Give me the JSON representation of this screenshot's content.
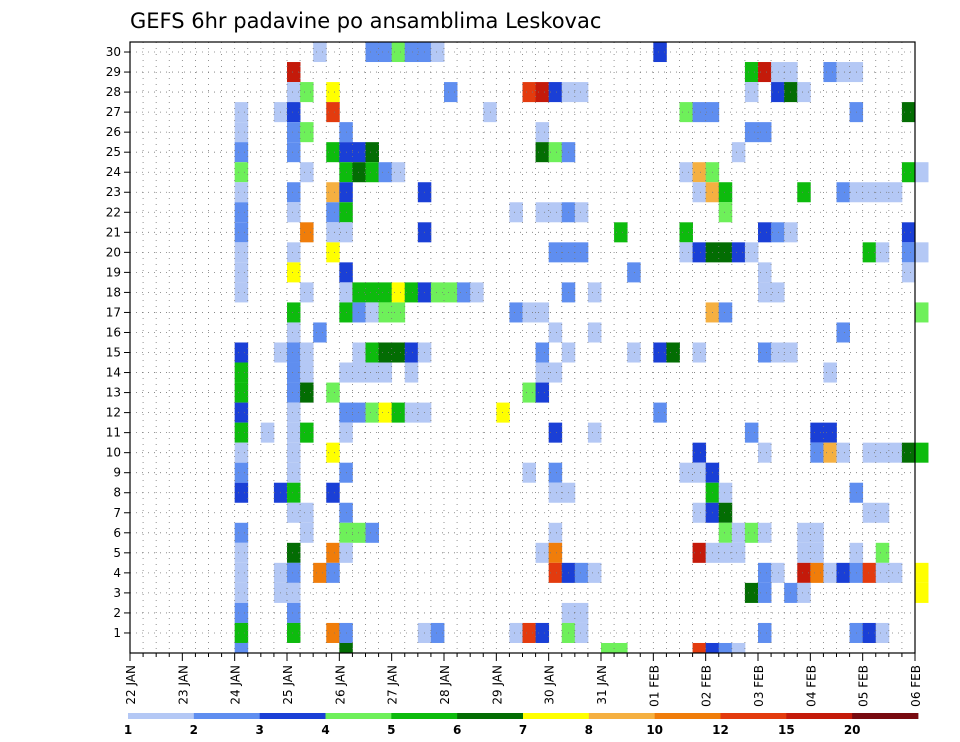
{
  "chart_data": {
    "type": "heatmap",
    "title": "GEFS 6hr padavine po ansamblima Leskovac",
    "xlabel": "",
    "ylabel": "",
    "x_tick_labels": [
      "22 JAN",
      "23 JAN",
      "24 JAN",
      "25 JAN",
      "26 JAN",
      "27 JAN",
      "28 JAN",
      "29 JAN",
      "30 JAN",
      "31 JAN",
      "01 FEB",
      "02 FEB",
      "03 FEB",
      "04 FEB",
      "05 FEB",
      "06 FEB"
    ],
    "y_tick_labels": [
      "1",
      "2",
      "3",
      "4",
      "5",
      "6",
      "7",
      "8",
      "9",
      "10",
      "11",
      "12",
      "13",
      "14",
      "15",
      "16",
      "17",
      "18",
      "19",
      "20",
      "21",
      "22",
      "23",
      "24",
      "25",
      "26",
      "27",
      "28",
      "29",
      "30"
    ],
    "time_steps_per_day": 4,
    "grid": true,
    "colorbar": {
      "labels": [
        "1",
        "2",
        "3",
        "4",
        "5",
        "6",
        "7",
        "8",
        "10",
        "12",
        "15",
        "20"
      ],
      "colors": [
        "#b4c8f5",
        "#5f8ef0",
        "#1a3fd6",
        "#6ef05a",
        "#0dbb0d",
        "#036d03",
        "#ffff00",
        "#f5b041",
        "#f07d0a",
        "#e33b0e",
        "#c41a0a",
        "#780a10"
      ]
    },
    "cells": [
      [
        30,
        3.5,
        1
      ],
      [
        30,
        4.5,
        2
      ],
      [
        30,
        4.75,
        2
      ],
      [
        30,
        5,
        4
      ],
      [
        30,
        5.25,
        2
      ],
      [
        30,
        5.5,
        2
      ],
      [
        30,
        5.75,
        1
      ],
      [
        30,
        10,
        3
      ],
      [
        29,
        3,
        11
      ],
      [
        29,
        11.75,
        5
      ],
      [
        29,
        12,
        11
      ],
      [
        29,
        12.25,
        1
      ],
      [
        29,
        12.5,
        1
      ],
      [
        29,
        13.25,
        2
      ],
      [
        29,
        13.5,
        1
      ],
      [
        29,
        13.75,
        1
      ],
      [
        28,
        3,
        1
      ],
      [
        28,
        3.25,
        4
      ],
      [
        28,
        3.75,
        7
      ],
      [
        28,
        6,
        2
      ],
      [
        28,
        7.5,
        10
      ],
      [
        28,
        7.75,
        11
      ],
      [
        28,
        8,
        3
      ],
      [
        28,
        8.25,
        1
      ],
      [
        28,
        8.5,
        1
      ],
      [
        28,
        11.75,
        1
      ],
      [
        28,
        12.25,
        3
      ],
      [
        28,
        12.5,
        6
      ],
      [
        28,
        12.75,
        1
      ],
      [
        27,
        2,
        1
      ],
      [
        27,
        2.75,
        1
      ],
      [
        27,
        3,
        3
      ],
      [
        27,
        3.75,
        10
      ],
      [
        27,
        6.75,
        1
      ],
      [
        27,
        10.5,
        4
      ],
      [
        27,
        10.75,
        2
      ],
      [
        27,
        11,
        2
      ],
      [
        27,
        13.75,
        2
      ],
      [
        27,
        14.75,
        6
      ],
      [
        26,
        2,
        1
      ],
      [
        26,
        3,
        2
      ],
      [
        26,
        3.25,
        4
      ],
      [
        26,
        4,
        2
      ],
      [
        26,
        7.75,
        1
      ],
      [
        26,
        11.75,
        2
      ],
      [
        26,
        12,
        2
      ],
      [
        25,
        2,
        2
      ],
      [
        25,
        3,
        2
      ],
      [
        25,
        3.75,
        5
      ],
      [
        25,
        4,
        3
      ],
      [
        25,
        4.25,
        3
      ],
      [
        25,
        4.5,
        6
      ],
      [
        25,
        7.75,
        6
      ],
      [
        25,
        8,
        4
      ],
      [
        25,
        8.25,
        2
      ],
      [
        25,
        11.5,
        1
      ],
      [
        24,
        2,
        4
      ],
      [
        24,
        3.25,
        1
      ],
      [
        24,
        4,
        5
      ],
      [
        24,
        4.25,
        6
      ],
      [
        24,
        4.5,
        5
      ],
      [
        24,
        4.75,
        2
      ],
      [
        24,
        5,
        1
      ],
      [
        24,
        10.5,
        1
      ],
      [
        24,
        10.75,
        8
      ],
      [
        24,
        11,
        4
      ],
      [
        24,
        14.75,
        5
      ],
      [
        24,
        15,
        1
      ],
      [
        23,
        2,
        1
      ],
      [
        23,
        3,
        2
      ],
      [
        23,
        3.75,
        8
      ],
      [
        23,
        4,
        3
      ],
      [
        23,
        5.5,
        3
      ],
      [
        23,
        10.75,
        1
      ],
      [
        23,
        11,
        8
      ],
      [
        23,
        11.25,
        5
      ],
      [
        23,
        12.75,
        5
      ],
      [
        23,
        13.5,
        2
      ],
      [
        23,
        13.75,
        1
      ],
      [
        23,
        14,
        1
      ],
      [
        23,
        14.25,
        1
      ],
      [
        23,
        14.5,
        1
      ],
      [
        22,
        2,
        2
      ],
      [
        22,
        3,
        1
      ],
      [
        22,
        3.75,
        2
      ],
      [
        22,
        4,
        5
      ],
      [
        22,
        7.25,
        1
      ],
      [
        22,
        7.75,
        1
      ],
      [
        22,
        8,
        1
      ],
      [
        22,
        8.25,
        2
      ],
      [
        22,
        8.5,
        1
      ],
      [
        22,
        11.25,
        4
      ],
      [
        21,
        2,
        2
      ],
      [
        21,
        3.25,
        9
      ],
      [
        21,
        3.75,
        1
      ],
      [
        21,
        4,
        1
      ],
      [
        21,
        5.5,
        3
      ],
      [
        21,
        9.25,
        5
      ],
      [
        21,
        10.5,
        5
      ],
      [
        21,
        12,
        3
      ],
      [
        21,
        12.25,
        2
      ],
      [
        21,
        12.5,
        1
      ],
      [
        21,
        14.75,
        3
      ],
      [
        20,
        2,
        1
      ],
      [
        20,
        3,
        1
      ],
      [
        20,
        3.75,
        7
      ],
      [
        20,
        8,
        2
      ],
      [
        20,
        8.25,
        2
      ],
      [
        20,
        8.5,
        2
      ],
      [
        20,
        10.5,
        1
      ],
      [
        20,
        10.75,
        3
      ],
      [
        20,
        11,
        6
      ],
      [
        20,
        11.25,
        6
      ],
      [
        20,
        11.5,
        3
      ],
      [
        20,
        11.75,
        1
      ],
      [
        20,
        14,
        5
      ],
      [
        20,
        14.25,
        1
      ],
      [
        20,
        14.75,
        2
      ],
      [
        20,
        15,
        1
      ],
      [
        19,
        2,
        1
      ],
      [
        19,
        3,
        7
      ],
      [
        19,
        4,
        3
      ],
      [
        19,
        9.5,
        2
      ],
      [
        19,
        12,
        1
      ],
      [
        19,
        14.75,
        1
      ],
      [
        18,
        2,
        1
      ],
      [
        18,
        3.25,
        1
      ],
      [
        18,
        4,
        1
      ],
      [
        18,
        4.25,
        5
      ],
      [
        18,
        4.5,
        5
      ],
      [
        18,
        4.75,
        5
      ],
      [
        18,
        5,
        7
      ],
      [
        18,
        5.25,
        5
      ],
      [
        18,
        5.5,
        3
      ],
      [
        18,
        5.75,
        4
      ],
      [
        18,
        6,
        4
      ],
      [
        18,
        6.25,
        2
      ],
      [
        18,
        6.5,
        1
      ],
      [
        18,
        8.25,
        2
      ],
      [
        18,
        8.75,
        1
      ],
      [
        18,
        12,
        1
      ],
      [
        18,
        12.25,
        1
      ],
      [
        17,
        3,
        5
      ],
      [
        17,
        4,
        5
      ],
      [
        17,
        4.25,
        2
      ],
      [
        17,
        4.5,
        1
      ],
      [
        17,
        4.75,
        4
      ],
      [
        17,
        5,
        4
      ],
      [
        17,
        7.25,
        2
      ],
      [
        17,
        7.5,
        1
      ],
      [
        17,
        7.75,
        1
      ],
      [
        17,
        11,
        8
      ],
      [
        17,
        11.25,
        2
      ],
      [
        17,
        15,
        4
      ],
      [
        16,
        3,
        1
      ],
      [
        16,
        3.5,
        2
      ],
      [
        16,
        8,
        1
      ],
      [
        16,
        8.75,
        1
      ],
      [
        16,
        13.5,
        2
      ],
      [
        15,
        2,
        3
      ],
      [
        15,
        2.75,
        1
      ],
      [
        15,
        3,
        2
      ],
      [
        15,
        3.25,
        1
      ],
      [
        15,
        4.25,
        1
      ],
      [
        15,
        4.5,
        5
      ],
      [
        15,
        4.75,
        6
      ],
      [
        15,
        5,
        6
      ],
      [
        15,
        5.25,
        3
      ],
      [
        15,
        5.5,
        1
      ],
      [
        15,
        7.75,
        2
      ],
      [
        15,
        8.25,
        1
      ],
      [
        15,
        9.5,
        1
      ],
      [
        15,
        10,
        3
      ],
      [
        15,
        10.25,
        6
      ],
      [
        15,
        10.75,
        1
      ],
      [
        15,
        12,
        2
      ],
      [
        15,
        12.25,
        1
      ],
      [
        15,
        12.5,
        1
      ],
      [
        14,
        2,
        5
      ],
      [
        14,
        3,
        2
      ],
      [
        14,
        3.25,
        1
      ],
      [
        14,
        4,
        1
      ],
      [
        14,
        4.25,
        1
      ],
      [
        14,
        4.5,
        1
      ],
      [
        14,
        4.75,
        1
      ],
      [
        14,
        5.25,
        1
      ],
      [
        14,
        7.75,
        1
      ],
      [
        14,
        8,
        1
      ],
      [
        14,
        13.25,
        1
      ],
      [
        13,
        2,
        5
      ],
      [
        13,
        3,
        2
      ],
      [
        13,
        3.25,
        6
      ],
      [
        13,
        3.75,
        4
      ],
      [
        13,
        7.5,
        4
      ],
      [
        13,
        7.75,
        3
      ],
      [
        12,
        2,
        3
      ],
      [
        12,
        3,
        1
      ],
      [
        12,
        4,
        2
      ],
      [
        12,
        4.25,
        2
      ],
      [
        12,
        4.5,
        4
      ],
      [
        12,
        4.75,
        7
      ],
      [
        12,
        5,
        5
      ],
      [
        12,
        5.25,
        1
      ],
      [
        12,
        5.5,
        1
      ],
      [
        12,
        7,
        7
      ],
      [
        12,
        10,
        2
      ],
      [
        11,
        2,
        5
      ],
      [
        11,
        2.5,
        1
      ],
      [
        11,
        3,
        1
      ],
      [
        11,
        3.25,
        5
      ],
      [
        11,
        4,
        1
      ],
      [
        11,
        8,
        3
      ],
      [
        11,
        8.75,
        1
      ],
      [
        11,
        11.75,
        2
      ],
      [
        11,
        13,
        3
      ],
      [
        11,
        13.25,
        3
      ],
      [
        10,
        2,
        1
      ],
      [
        10,
        3,
        1
      ],
      [
        10,
        3.75,
        7
      ],
      [
        10,
        10.75,
        3
      ],
      [
        10,
        12,
        1
      ],
      [
        10,
        13,
        2
      ],
      [
        10,
        13.25,
        8
      ],
      [
        10,
        13.5,
        1
      ],
      [
        10,
        14,
        1
      ],
      [
        10,
        14.25,
        1
      ],
      [
        10,
        14.5,
        1
      ],
      [
        10,
        14.75,
        6
      ],
      [
        10,
        15,
        5
      ],
      [
        9,
        2,
        2
      ],
      [
        9,
        3,
        1
      ],
      [
        9,
        4,
        2
      ],
      [
        9,
        7.5,
        1
      ],
      [
        9,
        8,
        2
      ],
      [
        9,
        10.5,
        1
      ],
      [
        9,
        10.75,
        1
      ],
      [
        9,
        11,
        3
      ],
      [
        8,
        2,
        3
      ],
      [
        8,
        2.75,
        3
      ],
      [
        8,
        3,
        5
      ],
      [
        8,
        3.75,
        3
      ],
      [
        8,
        8,
        1
      ],
      [
        8,
        8.25,
        1
      ],
      [
        8,
        11,
        5
      ],
      [
        8,
        11.25,
        1
      ],
      [
        8,
        13.75,
        2
      ],
      [
        7,
        3,
        1
      ],
      [
        7,
        3.25,
        1
      ],
      [
        7,
        4,
        2
      ],
      [
        7,
        10.75,
        1
      ],
      [
        7,
        11,
        3
      ],
      [
        7,
        11.25,
        6
      ],
      [
        7,
        14,
        1
      ],
      [
        7,
        14.25,
        1
      ],
      [
        6,
        2,
        2
      ],
      [
        6,
        3.25,
        1
      ],
      [
        6,
        4,
        4
      ],
      [
        6,
        4.25,
        4
      ],
      [
        6,
        4.5,
        2
      ],
      [
        6,
        8,
        1
      ],
      [
        6,
        11.25,
        4
      ],
      [
        6,
        11.5,
        1
      ],
      [
        6,
        11.75,
        4
      ],
      [
        6,
        12,
        1
      ],
      [
        6,
        12.75,
        1
      ],
      [
        6,
        13,
        1
      ],
      [
        5,
        2,
        1
      ],
      [
        5,
        3,
        6
      ],
      [
        5,
        3.75,
        9
      ],
      [
        5,
        4,
        1
      ],
      [
        5,
        7.75,
        1
      ],
      [
        5,
        8,
        9
      ],
      [
        5,
        10.75,
        11
      ],
      [
        5,
        11,
        1
      ],
      [
        5,
        11.25,
        1
      ],
      [
        5,
        11.5,
        1
      ],
      [
        5,
        12.75,
        1
      ],
      [
        5,
        13,
        1
      ],
      [
        5,
        13.75,
        1
      ],
      [
        5,
        14.25,
        4
      ],
      [
        4,
        2,
        1
      ],
      [
        4,
        2.75,
        1
      ],
      [
        4,
        3,
        2
      ],
      [
        4,
        3.5,
        9
      ],
      [
        4,
        3.75,
        2
      ],
      [
        4,
        8,
        10
      ],
      [
        4,
        8.25,
        3
      ],
      [
        4,
        8.5,
        2
      ],
      [
        4,
        8.75,
        1
      ],
      [
        4,
        12,
        2
      ],
      [
        4,
        12.25,
        1
      ],
      [
        4,
        12.75,
        11
      ],
      [
        4,
        13,
        9
      ],
      [
        4,
        13.25,
        1
      ],
      [
        4,
        13.5,
        3
      ],
      [
        4,
        13.75,
        2
      ],
      [
        4,
        14,
        10
      ],
      [
        4,
        14.25,
        1
      ],
      [
        4,
        14.5,
        1
      ],
      [
        4,
        15,
        7
      ],
      [
        3,
        2,
        1
      ],
      [
        3,
        2.75,
        1
      ],
      [
        3,
        3,
        1
      ],
      [
        3,
        11.75,
        6
      ],
      [
        3,
        12,
        2
      ],
      [
        3,
        12.5,
        2
      ],
      [
        3,
        12.75,
        1
      ],
      [
        3,
        15,
        7
      ],
      [
        2,
        2,
        2
      ],
      [
        2,
        3,
        2
      ],
      [
        2,
        8.25,
        1
      ],
      [
        2,
        8.5,
        1
      ],
      [
        1,
        2,
        5
      ],
      [
        1,
        3,
        5
      ],
      [
        1,
        3.75,
        9
      ],
      [
        1,
        4,
        2
      ],
      [
        1,
        5.5,
        1
      ],
      [
        1,
        5.75,
        2
      ],
      [
        1,
        7.25,
        1
      ],
      [
        1,
        7.5,
        10
      ],
      [
        1,
        7.75,
        3
      ],
      [
        1,
        8.25,
        4
      ],
      [
        1,
        8.5,
        1
      ],
      [
        1,
        12,
        2
      ],
      [
        1,
        13.75,
        2
      ],
      [
        1,
        14,
        3
      ],
      [
        1,
        14.25,
        1
      ],
      [
        0,
        2,
        2
      ],
      [
        0,
        4,
        6
      ],
      [
        0,
        9,
        4
      ],
      [
        0,
        9.25,
        4
      ],
      [
        0,
        10.75,
        10
      ],
      [
        0,
        11,
        3
      ],
      [
        0,
        11.25,
        2
      ],
      [
        0,
        11.5,
        1
      ]
    ]
  }
}
